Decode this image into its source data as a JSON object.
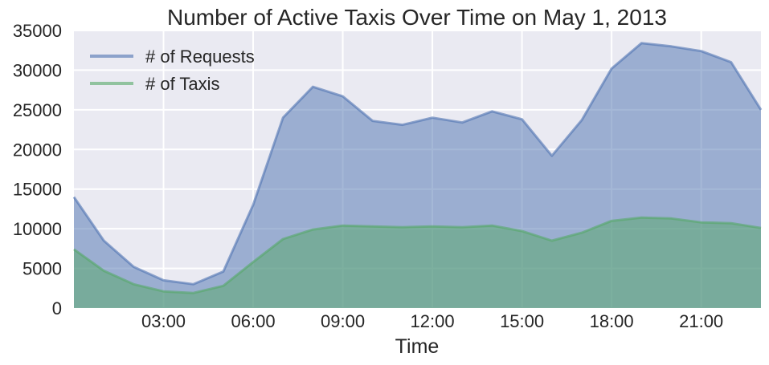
{
  "chart_data": {
    "type": "area",
    "title": "Number of Active Taxis Over Time on May 1, 2013",
    "xlabel": "Time",
    "ylabel": "",
    "xlim": [
      0,
      23
    ],
    "ylim": [
      0,
      35000
    ],
    "yticks": [
      0,
      5000,
      10000,
      15000,
      20000,
      25000,
      30000,
      35000
    ],
    "xticks": [
      {
        "x": 3,
        "label": "03:00"
      },
      {
        "x": 6,
        "label": "06:00"
      },
      {
        "x": 9,
        "label": "09:00"
      },
      {
        "x": 12,
        "label": "12:00"
      },
      {
        "x": 15,
        "label": "15:00"
      },
      {
        "x": 18,
        "label": "18:00"
      },
      {
        "x": 21,
        "label": "21:00"
      }
    ],
    "x": [
      0,
      1,
      2,
      3,
      4,
      5,
      6,
      7,
      8,
      9,
      10,
      11,
      12,
      13,
      14,
      15,
      16,
      17,
      18,
      19,
      20,
      21,
      22,
      23
    ],
    "series": [
      {
        "name": "# of Requests",
        "color": "#4c72b0",
        "values": [
          14000,
          8500,
          5200,
          3500,
          3000,
          4600,
          13000,
          24000,
          27900,
          26700,
          23600,
          23100,
          24000,
          23400,
          24800,
          23800,
          19200,
          23700,
          30200,
          33400,
          33000,
          32400,
          31000,
          25000
        ]
      },
      {
        "name": "# of Taxis",
        "color": "#55a868",
        "values": [
          7400,
          4700,
          3000,
          2100,
          1900,
          2800,
          5800,
          8700,
          9900,
          10400,
          10300,
          10200,
          10300,
          10200,
          10400,
          9700,
          8500,
          9500,
          11000,
          11400,
          11300,
          10800,
          10700,
          10100
        ]
      }
    ],
    "grid": true,
    "legend": "top-left",
    "background": "#eaeaf2"
  }
}
